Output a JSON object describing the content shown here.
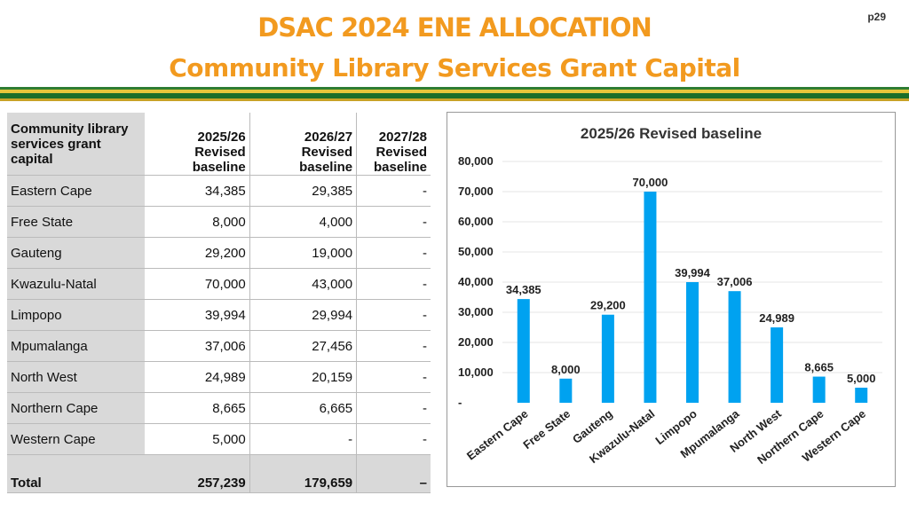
{
  "page_number": "p29",
  "title_line1": "DSAC 2024 ENE ALLOCATION",
  "title_line2": "Community Library Services Grant Capital",
  "table": {
    "headers": [
      "Community library services grant capital",
      "2025/26 Revised baseline",
      "2026/27 Revised baseline",
      "2027/28 Revised baseline"
    ],
    "rows": [
      [
        "Eastern Cape",
        "34,385",
        "29,385",
        "-"
      ],
      [
        "Free State",
        "8,000",
        "4,000",
        "-"
      ],
      [
        "Gauteng",
        "29,200",
        "19,000",
        "-"
      ],
      [
        "Kwazulu-Natal",
        "70,000",
        "43,000",
        "-"
      ],
      [
        "Limpopo",
        "39,994",
        "29,994",
        "-"
      ],
      [
        "Mpumalanga",
        "37,006",
        "27,456",
        "-"
      ],
      [
        "North West",
        "24,989",
        "20,159",
        "-"
      ],
      [
        "Northern Cape",
        "8,665",
        "6,665",
        "-"
      ],
      [
        "Western Cape",
        "5,000",
        "-",
        "-"
      ]
    ],
    "total": [
      "Total",
      "257,239",
      "179,659",
      "–"
    ]
  },
  "chart_data": {
    "type": "bar",
    "title": "2025/26 Revised baseline",
    "categories": [
      "Eastern Cape",
      "Free State",
      "Gauteng",
      "Kwazulu-Natal",
      "Limpopo",
      "Mpumalanga",
      "North West",
      "Northern Cape",
      "Western Cape"
    ],
    "values": [
      34385,
      8000,
      29200,
      70000,
      39994,
      37006,
      24989,
      8665,
      5000
    ],
    "data_labels": [
      "34,385",
      "8,000",
      "29,200",
      "70,000",
      "39,994",
      "37,006",
      "24,989",
      "8,665",
      "5,000"
    ],
    "ylim": [
      0,
      80000
    ],
    "yticks": [
      0,
      10000,
      20000,
      30000,
      40000,
      50000,
      60000,
      70000,
      80000
    ],
    "ytick_labels": [
      "-",
      "10,000",
      "20,000",
      "30,000",
      "40,000",
      "50,000",
      "60,000",
      "70,000",
      "80,000"
    ],
    "bar_color": "#00a2f0",
    "grid": true,
    "legend": "none"
  },
  "colors": {
    "title": "#f29a1f",
    "band_green": "#1b6e2a",
    "band_gold": "#e8c63a"
  }
}
